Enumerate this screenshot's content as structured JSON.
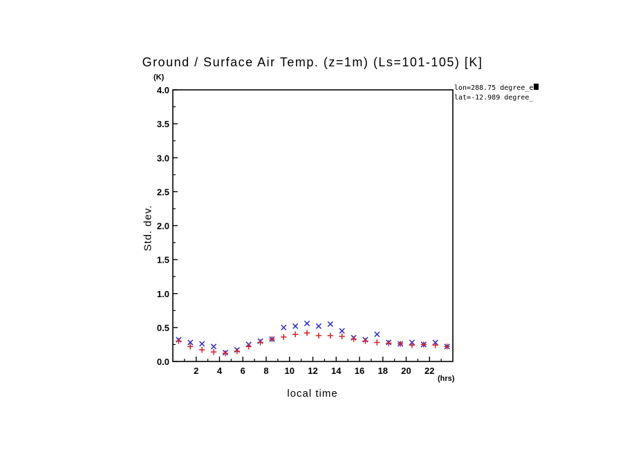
{
  "title": "Ground / Surface Air Temp. (z=1m) (Ls=101-105) [K]",
  "y_unit": "(K)",
  "x_unit": "(hrs)",
  "ylabel": "Std. dev.",
  "xlabel": "local time",
  "annotation": {
    "line1": "lon=288.75 degree_e",
    "line2": "lat=-12.989 degree_"
  },
  "chart_data": {
    "type": "scatter",
    "title": "Ground / Surface Air Temp. (z=1m) (Ls=101-105) [K]",
    "xlabel": "local time",
    "ylabel": "Std. dev.",
    "x_axis_unit": "(hrs)",
    "y_axis_unit": "(K)",
    "xlim": [
      0,
      24
    ],
    "ylim": [
      0.0,
      4.0
    ],
    "xticks": [
      2,
      4,
      6,
      8,
      10,
      12,
      14,
      16,
      18,
      20,
      22
    ],
    "yticks": [
      0.0,
      0.5,
      1.0,
      1.5,
      2.0,
      2.5,
      3.0,
      3.5,
      4.0
    ],
    "x_minor_step": 1,
    "y_minor_step": 0.25,
    "grid": false,
    "legend": "none",
    "x": [
      0.5,
      1.5,
      2.5,
      3.5,
      4.5,
      5.5,
      6.5,
      7.5,
      8.5,
      9.5,
      10.5,
      11.5,
      12.5,
      13.5,
      14.5,
      15.5,
      16.5,
      17.5,
      18.5,
      19.5,
      20.5,
      21.5,
      22.5,
      23.5
    ],
    "series": [
      {
        "name": "series-blue-x",
        "marker": "x",
        "color": "#2b2bc4",
        "values": [
          0.32,
          0.28,
          0.26,
          0.22,
          0.13,
          0.17,
          0.25,
          0.3,
          0.33,
          0.5,
          0.52,
          0.56,
          0.52,
          0.55,
          0.45,
          0.35,
          0.32,
          0.4,
          0.28,
          0.26,
          0.28,
          0.25,
          0.28,
          0.22
        ]
      },
      {
        "name": "series-red-plus",
        "marker": "+",
        "color": "#d42222",
        "values": [
          0.3,
          0.22,
          0.17,
          0.14,
          0.12,
          0.15,
          0.22,
          0.28,
          0.33,
          0.36,
          0.4,
          0.42,
          0.38,
          0.38,
          0.37,
          0.33,
          0.3,
          0.28,
          0.27,
          0.26,
          0.24,
          0.25,
          0.24,
          0.22
        ]
      }
    ]
  }
}
